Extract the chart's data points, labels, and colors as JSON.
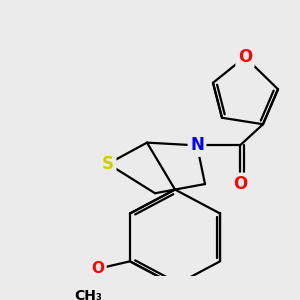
{
  "background_color": "#EBEBEB",
  "bond_color": "#000000",
  "bond_width": 1.6,
  "atom_colors": {
    "S": "#CCCC00",
    "N": "#0000FF",
    "O": "#FF0000",
    "C": "#000000"
  },
  "font_size": 12,
  "figsize": [
    3.0,
    3.0
  ],
  "dpi": 100
}
